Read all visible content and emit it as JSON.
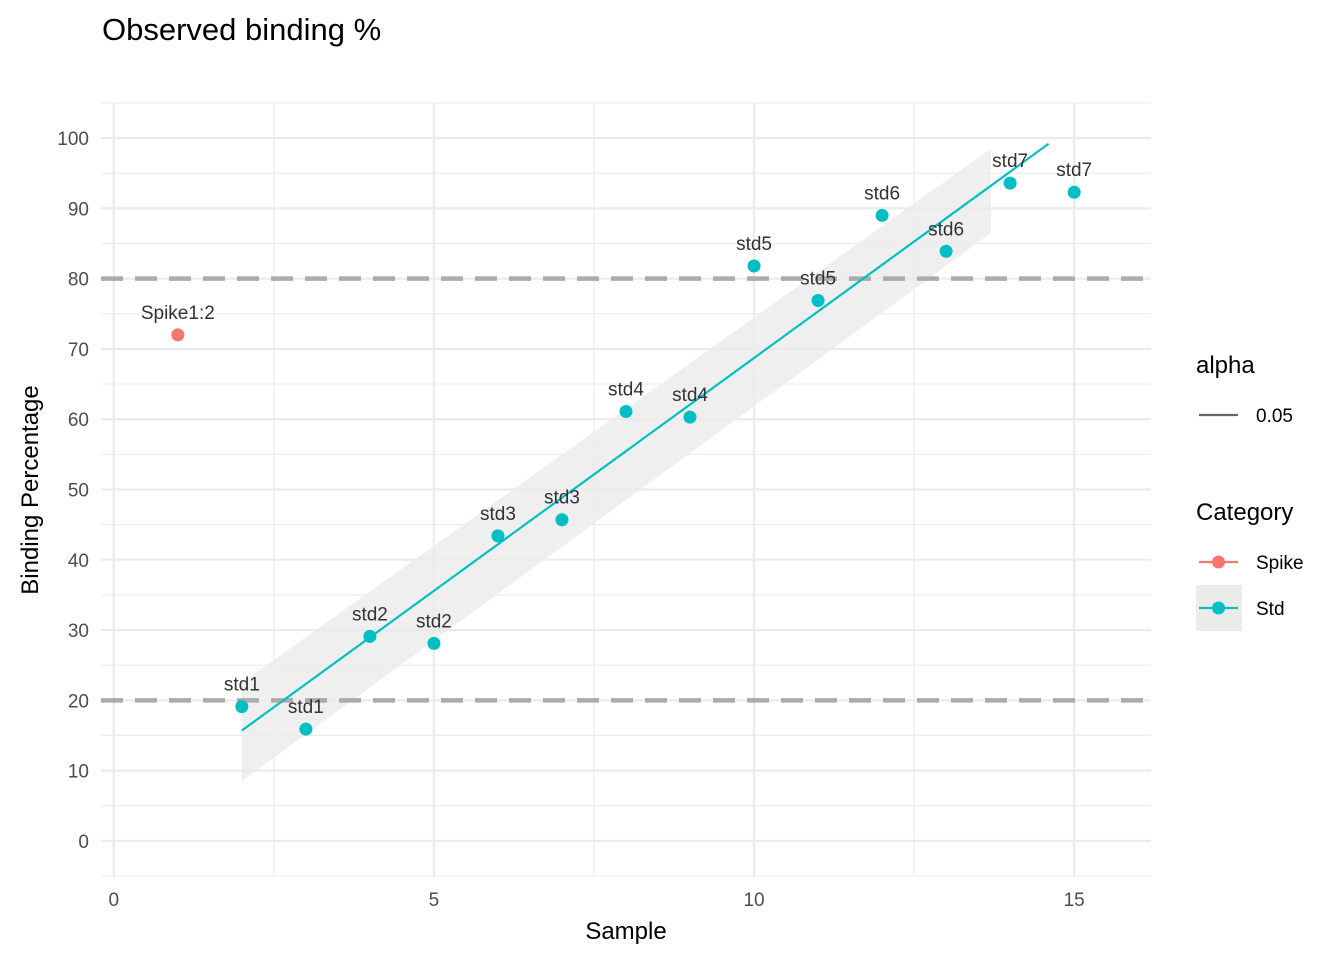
{
  "chart_data": {
    "type": "scatter",
    "title": "Observed binding %",
    "xlabel": "Sample",
    "ylabel": "Binding Percentage",
    "xlim": [
      -0.2,
      16.2
    ],
    "ylim": [
      -5,
      105
    ],
    "x_ticks": [
      0,
      5,
      10,
      15
    ],
    "x_minor": [
      2.5,
      7.5,
      12.5
    ],
    "y_ticks": [
      0,
      10,
      20,
      30,
      40,
      50,
      60,
      70,
      80,
      90,
      100
    ],
    "grid": true,
    "hlines": [
      {
        "y": 20,
        "style": "dashed",
        "color": "#ababab"
      },
      {
        "y": 80,
        "style": "dashed",
        "color": "#ababab"
      }
    ],
    "series": [
      {
        "name": "Spike",
        "color": "#F8766D",
        "points": [
          {
            "x": 1,
            "y": 72,
            "label": "Spike1:2"
          }
        ]
      },
      {
        "name": "Std",
        "color": "#00BFC4",
        "points": [
          {
            "x": 2,
            "y": 19.1,
            "label": "std1"
          },
          {
            "x": 3,
            "y": 15.9,
            "label": "std1"
          },
          {
            "x": 4,
            "y": 29.1,
            "label": "std2"
          },
          {
            "x": 5,
            "y": 28.1,
            "label": "std2"
          },
          {
            "x": 6,
            "y": 43.4,
            "label": "std3"
          },
          {
            "x": 7,
            "y": 45.7,
            "label": "std3"
          },
          {
            "x": 8,
            "y": 61.1,
            "label": "std4"
          },
          {
            "x": 9,
            "y": 60.3,
            "label": "std4"
          },
          {
            "x": 10,
            "y": 81.8,
            "label": "std5"
          },
          {
            "x": 11,
            "y": 76.9,
            "label": "std5"
          },
          {
            "x": 12,
            "y": 89.0,
            "label": "std6"
          },
          {
            "x": 13,
            "y": 83.9,
            "label": "std6"
          },
          {
            "x": 14,
            "y": 93.6,
            "label": "std7"
          },
          {
            "x": 15,
            "y": 92.3,
            "label": "std7"
          }
        ]
      }
    ],
    "fit_line": {
      "x": [
        2,
        14.6
      ],
      "y": [
        15.7,
        99.2
      ],
      "color": "#00BFC4"
    },
    "confidence_band": {
      "x": [
        2,
        13.7
      ],
      "upper": [
        22.5,
        98.5
      ],
      "lower": [
        8.5,
        86.5
      ],
      "color": "#ebebeb"
    },
    "legend": {
      "placement": "right",
      "alpha_title": "alpha",
      "alpha_value": "0.05",
      "category_title": "Category",
      "categories": [
        "Spike",
        "Std"
      ]
    }
  }
}
